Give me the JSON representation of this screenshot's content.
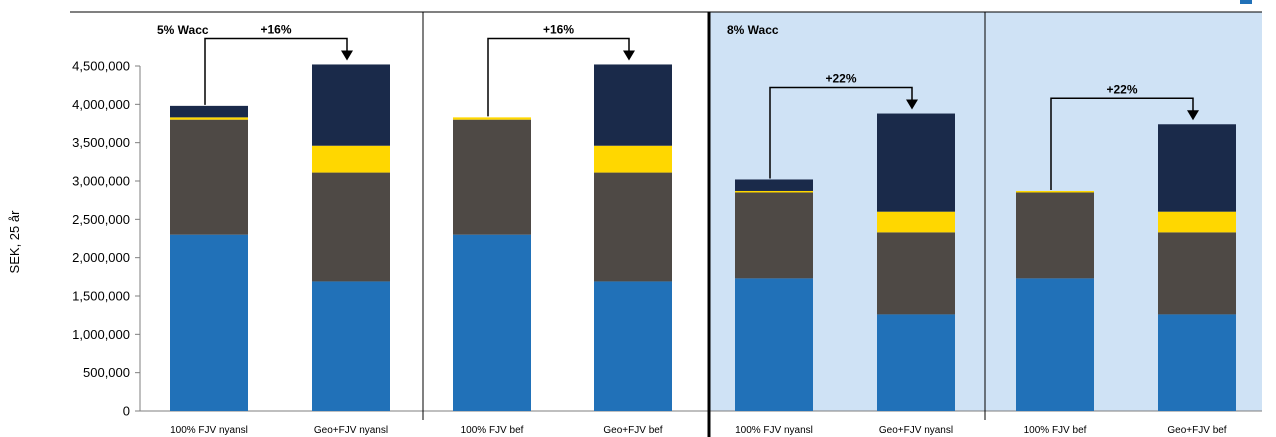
{
  "chart_data": {
    "type": "bar",
    "stacked": true,
    "ylabel": "SEK, 25 år",
    "ylim": [
      0,
      4500000
    ],
    "yticks": [
      0,
      500000,
      1000000,
      1500000,
      2000000,
      2500000,
      3000000,
      3500000,
      4000000,
      4500000
    ],
    "ytick_labels": [
      "0",
      "500,000",
      "1,000,000",
      "1,500,000",
      "2,000,000",
      "2,500,000",
      "3,000,000",
      "3,500,000",
      "4,000,000",
      "4,500,000"
    ],
    "colors": [
      "#2171b8",
      "#4e4945",
      "#ffd700",
      "#1a2a4a"
    ],
    "categories": [
      "100% FJV nyansl",
      "Geo+FJV nyansl",
      "100% FJV bef",
      "Geo+FJV bef",
      "100% FJV nyansl",
      "Geo+FJV nyansl",
      "100% FJV bef",
      "Geo+FJV bef"
    ],
    "series": [
      {
        "values": [
          2300000,
          1690000,
          2300000,
          1690000,
          1730000,
          1260000,
          1730000,
          1260000
        ]
      },
      {
        "values": [
          1500000,
          1420000,
          1500000,
          1420000,
          1120000,
          1070000,
          1120000,
          1070000
        ]
      },
      {
        "values": [
          30000,
          350000,
          30000,
          350000,
          20000,
          270000,
          20000,
          270000
        ]
      },
      {
        "values": [
          150000,
          1060000,
          0,
          1060000,
          150000,
          1280000,
          0,
          1140000
        ]
      }
    ],
    "groups": [
      {
        "label": "5% Wacc",
        "shaded": false
      },
      {
        "label": "",
        "shaded": false
      },
      {
        "label": "8% Wacc",
        "shaded": true
      },
      {
        "label": "",
        "shaded": true
      }
    ],
    "annotations": [
      {
        "text": "+16%",
        "from": 0,
        "to": 1
      },
      {
        "text": "+16%",
        "from": 2,
        "to": 3
      },
      {
        "text": "+22%",
        "from": 4,
        "to": 5
      },
      {
        "text": "+22%",
        "from": 6,
        "to": 7
      }
    ]
  }
}
